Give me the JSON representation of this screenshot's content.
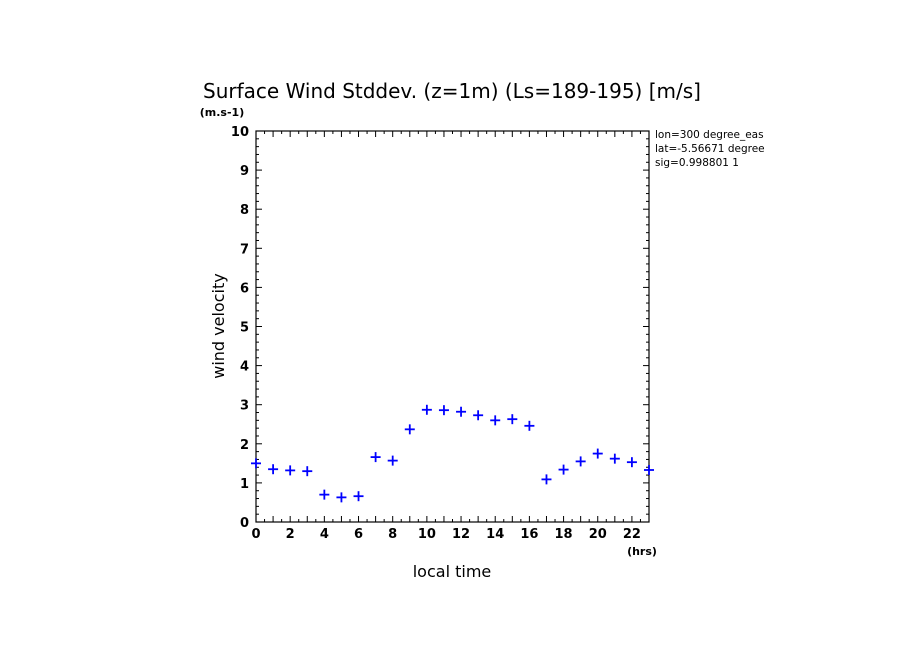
{
  "chart_data": {
    "type": "scatter",
    "title": "Surface Wind Stddev. (z=1m) (Ls=189-195) [m/s]",
    "xlabel": "local time",
    "ylabel": "wind velocity",
    "x_unit": "(hrs)",
    "y_unit": "(m.s-1)",
    "xlim": [
      0,
      23
    ],
    "ylim": [
      0,
      10
    ],
    "xticks": [
      0,
      2,
      4,
      6,
      8,
      10,
      12,
      14,
      16,
      18,
      20,
      22
    ],
    "yticks": [
      0,
      1,
      2,
      3,
      4,
      5,
      6,
      7,
      8,
      9,
      10
    ],
    "grid": false,
    "marker": "+",
    "marker_color": "#0000ff",
    "annotations": [
      "lon=300 degree_eas",
      "lat=-5.56671 degree",
      "sig=0.998801 1"
    ],
    "series": [
      {
        "x": [
          0,
          1,
          2,
          3,
          4,
          5,
          6,
          7,
          8,
          9,
          10,
          11,
          12,
          13,
          14,
          15,
          16,
          17,
          18,
          19,
          20,
          21,
          22,
          23
        ],
        "y": [
          1.5,
          1.35,
          1.32,
          1.3,
          0.7,
          0.63,
          0.66,
          1.66,
          1.57,
          2.37,
          2.87,
          2.86,
          2.82,
          2.73,
          2.6,
          2.63,
          2.46,
          1.09,
          1.34,
          1.55,
          1.75,
          1.62,
          1.53,
          1.33
        ]
      }
    ]
  }
}
